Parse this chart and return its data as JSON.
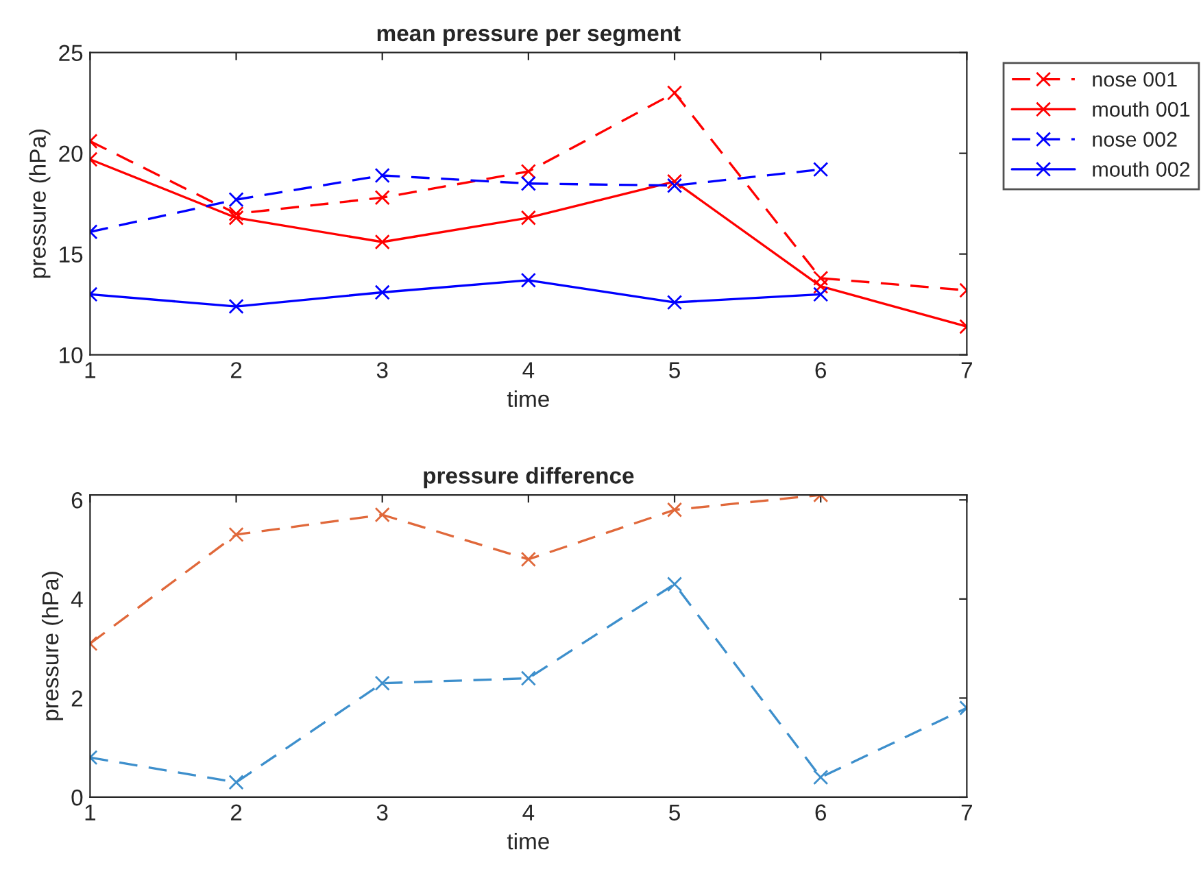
{
  "chart_data": [
    {
      "type": "line",
      "title": "mean pressure per segment",
      "xlabel": "time",
      "ylabel": "pressure (hPa)",
      "x": [
        1,
        2,
        3,
        4,
        5,
        6,
        7
      ],
      "xlim": [
        1,
        7
      ],
      "xticks": [
        1,
        2,
        3,
        4,
        5,
        6,
        7
      ],
      "ylim": [
        10,
        25
      ],
      "yticks": [
        10,
        15,
        20,
        25
      ],
      "grid": false,
      "legend": "top right",
      "marker": "cross",
      "series": [
        {
          "name": "nose 001",
          "color": "#ff0000",
          "line_style": "dashed",
          "values": [
            20.6,
            17.0,
            17.8,
            19.1,
            23.0,
            13.8,
            13.2
          ]
        },
        {
          "name": "mouth 001",
          "color": "#ff0000",
          "line_style": "solid",
          "values": [
            19.7,
            16.8,
            15.6,
            16.8,
            18.6,
            13.4,
            11.4
          ]
        },
        {
          "name": "nose 002",
          "color": "#0000ff",
          "line_style": "dashed",
          "values": [
            16.1,
            17.7,
            18.9,
            18.5,
            18.4,
            19.2,
            null
          ]
        },
        {
          "name": "mouth 002",
          "color": "#0000ff",
          "line_style": "solid",
          "values": [
            13.0,
            12.4,
            13.1,
            13.7,
            12.6,
            13.0,
            null
          ]
        }
      ]
    },
    {
      "type": "line",
      "title": "pressure difference",
      "xlabel": "time",
      "ylabel": "pressure (hPa)",
      "x": [
        1,
        2,
        3,
        4,
        5,
        6,
        7
      ],
      "xlim": [
        1,
        7
      ],
      "xticks": [
        1,
        2,
        3,
        4,
        5,
        6,
        7
      ],
      "ylim": [
        0,
        6.1
      ],
      "yticks": [
        0,
        2,
        4,
        6
      ],
      "grid": false,
      "legend": false,
      "marker": "cross",
      "series": [
        {
          "color": "#e0683a",
          "line_style": "dashed",
          "values": [
            3.1,
            5.3,
            5.7,
            4.8,
            5.8,
            6.1,
            null
          ]
        },
        {
          "color": "#3d8fcc",
          "line_style": "dashed",
          "values": [
            0.8,
            0.3,
            2.3,
            2.4,
            4.3,
            0.4,
            1.8
          ]
        }
      ]
    }
  ]
}
